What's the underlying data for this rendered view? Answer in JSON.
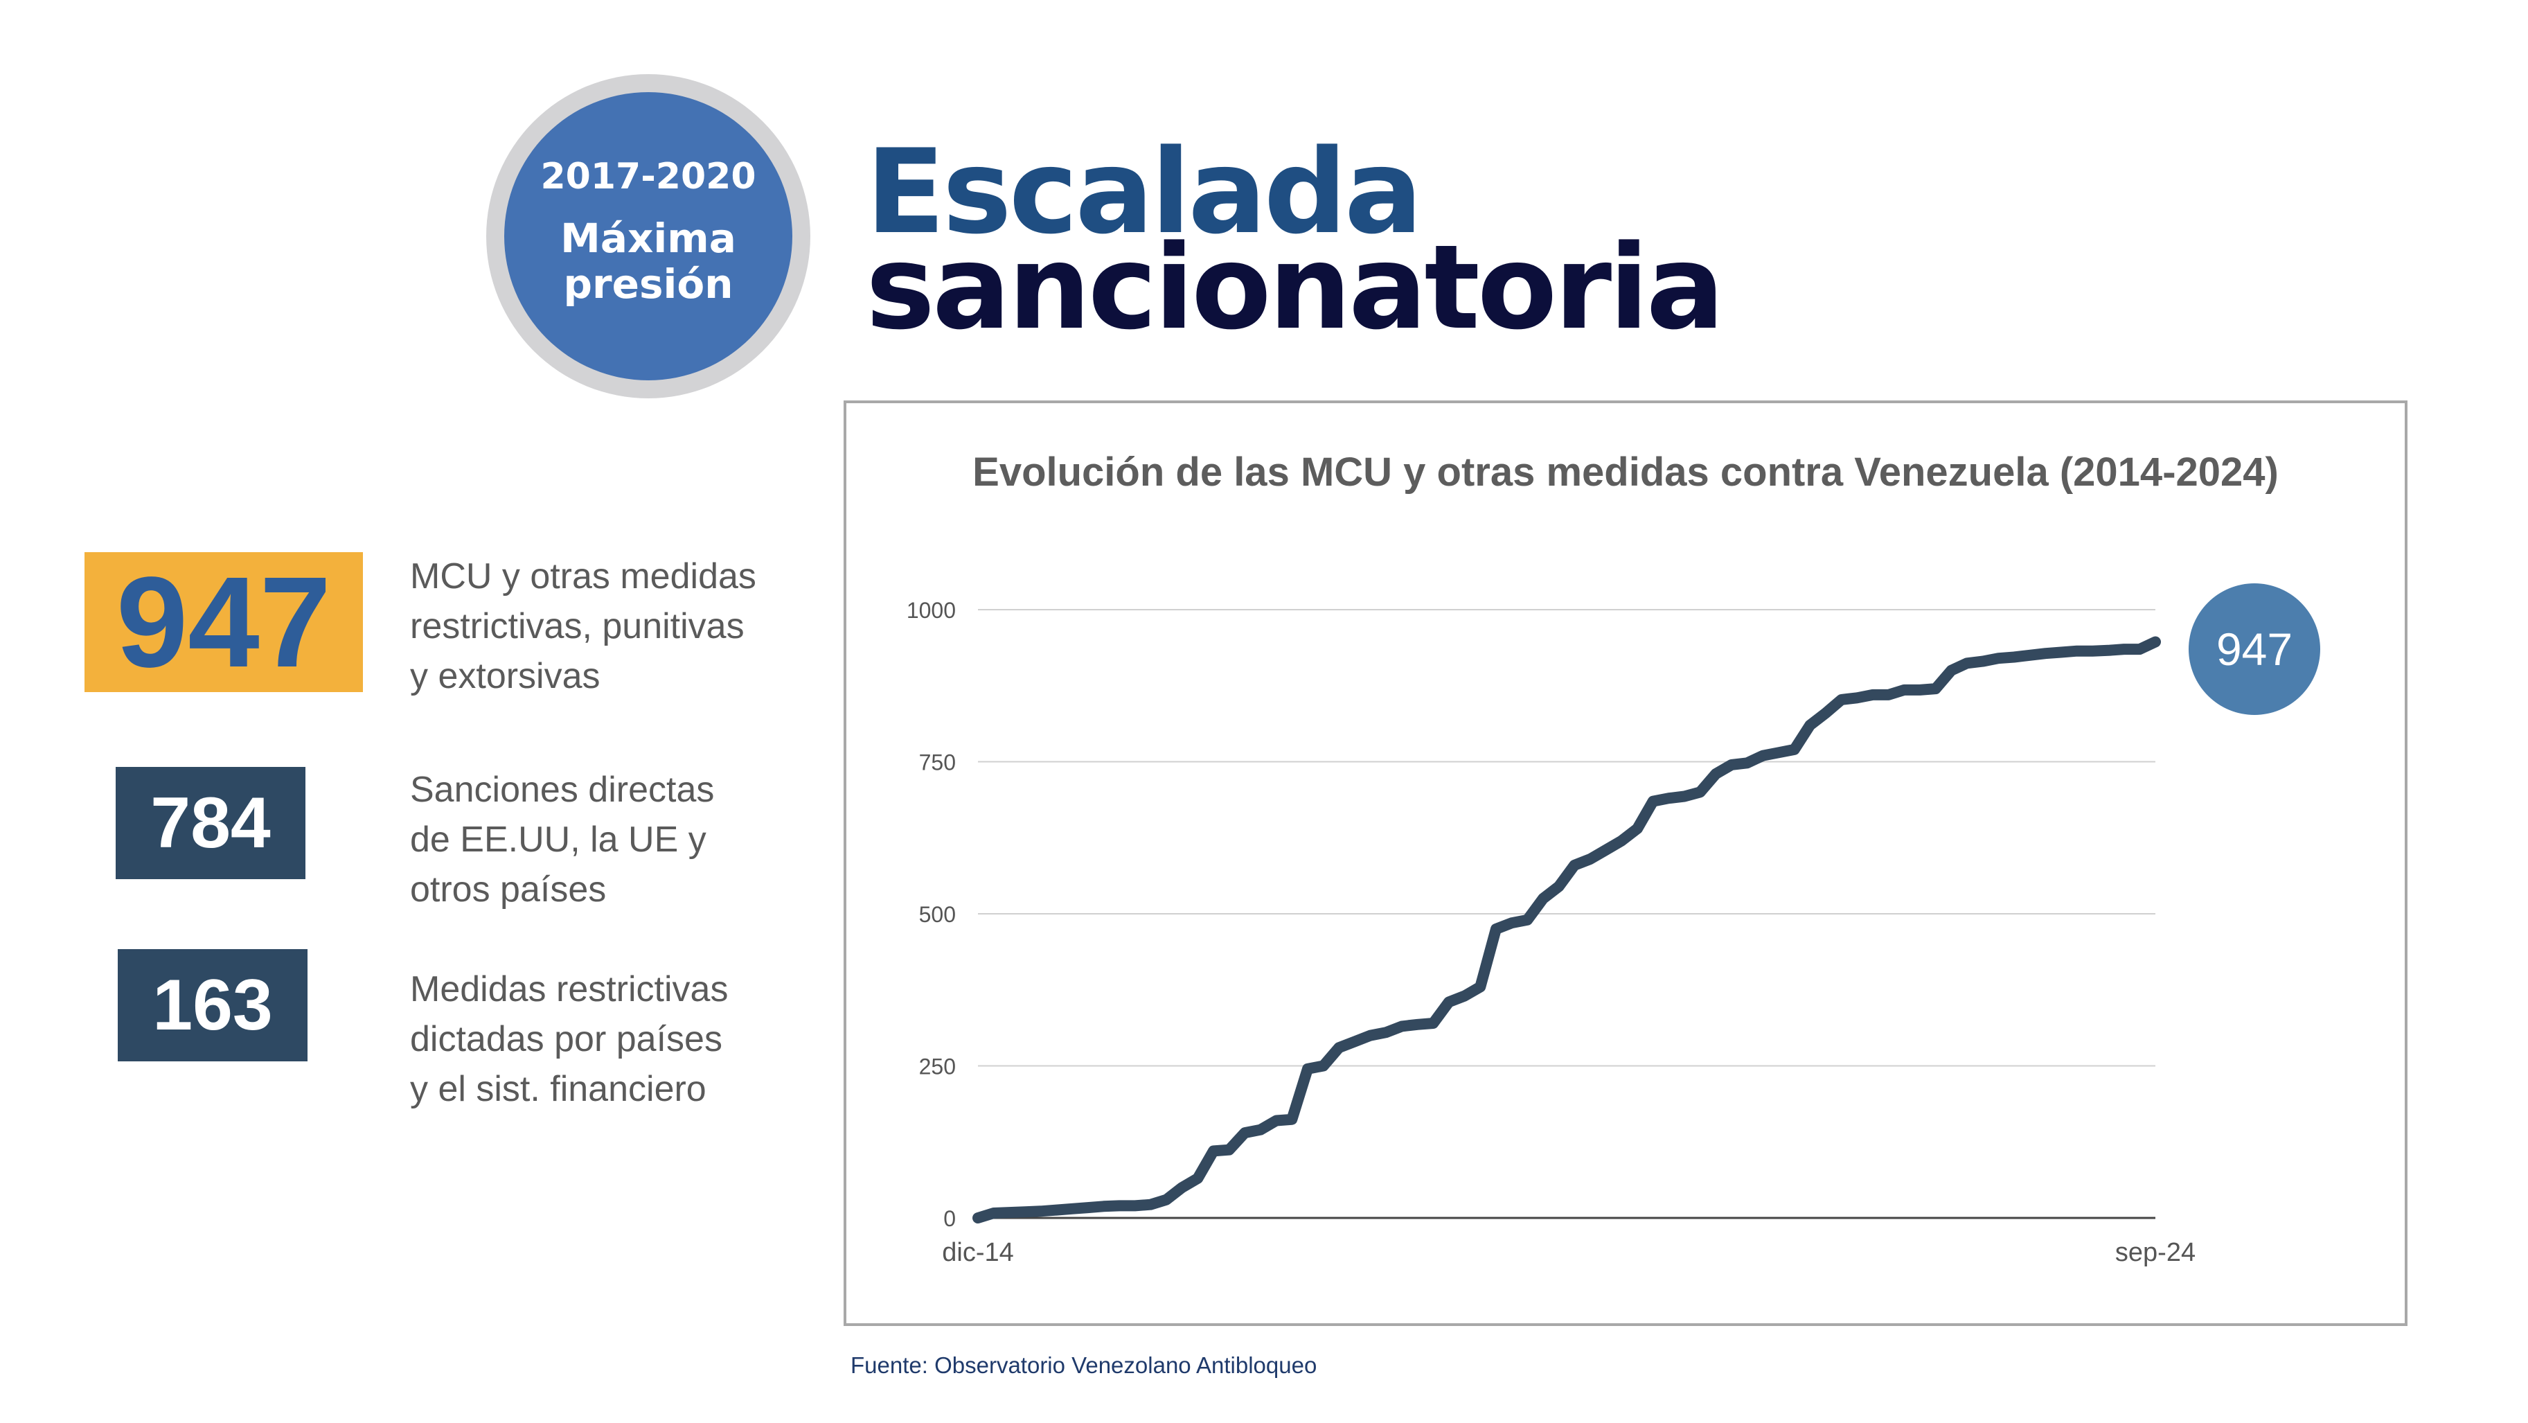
{
  "badge": {
    "years": "2017-2020",
    "line1": "Máxima",
    "line2": "presión"
  },
  "title": {
    "line1": "Escalada",
    "line2": "sancionatoria"
  },
  "stats": [
    {
      "value": "947",
      "desc": [
        "MCU y otras medidas",
        "restrictivas, punitivas",
        "y extorsivas"
      ],
      "color": "#f3b13c"
    },
    {
      "value": "784",
      "desc": [
        "Sanciones directas",
        "de EE.UU, la UE y",
        "otros países"
      ],
      "color": "#2e4963"
    },
    {
      "value": "163",
      "desc": [
        "Medidas restrictivas",
        "dictadas por países",
        "y el sist. financiero"
      ],
      "color": "#2e4963"
    }
  ],
  "end_value": "947",
  "source": "Fuente: Observatorio Venezolano Antibloqueo",
  "colors": {
    "line": "#34495e",
    "bubble": "#4c7ead",
    "grid": "#d0d0d0"
  },
  "chart_data": {
    "type": "line",
    "title": "Evolución de las MCU y otras medidas contra Venezuela (2014-2024)",
    "xlabel": "",
    "ylabel": "",
    "x_tick_labels": [
      "dic-14",
      "sep-24"
    ],
    "ylim": [
      0,
      1000
    ],
    "yticks": [
      0,
      250,
      500,
      750,
      1000
    ],
    "grid": true,
    "legend": "none",
    "x_start": "dic-14",
    "x_end": "sep-24",
    "series": [
      {
        "name": "",
        "values": [
          0,
          8,
          9,
          10,
          11,
          13,
          15,
          17,
          19,
          20,
          20,
          22,
          30,
          50,
          65,
          110,
          112,
          140,
          145,
          160,
          162,
          245,
          250,
          280,
          290,
          300,
          305,
          315,
          318,
          320,
          355,
          365,
          380,
          475,
          485,
          490,
          525,
          545,
          580,
          590,
          605,
          620,
          640,
          685,
          690,
          693,
          700,
          730,
          745,
          748,
          760,
          765,
          770,
          810,
          830,
          852,
          855,
          860,
          860,
          868,
          868,
          870,
          900,
          912,
          915,
          920,
          922,
          925,
          928,
          930,
          932,
          932,
          933,
          935,
          935,
          947
        ]
      }
    ]
  }
}
